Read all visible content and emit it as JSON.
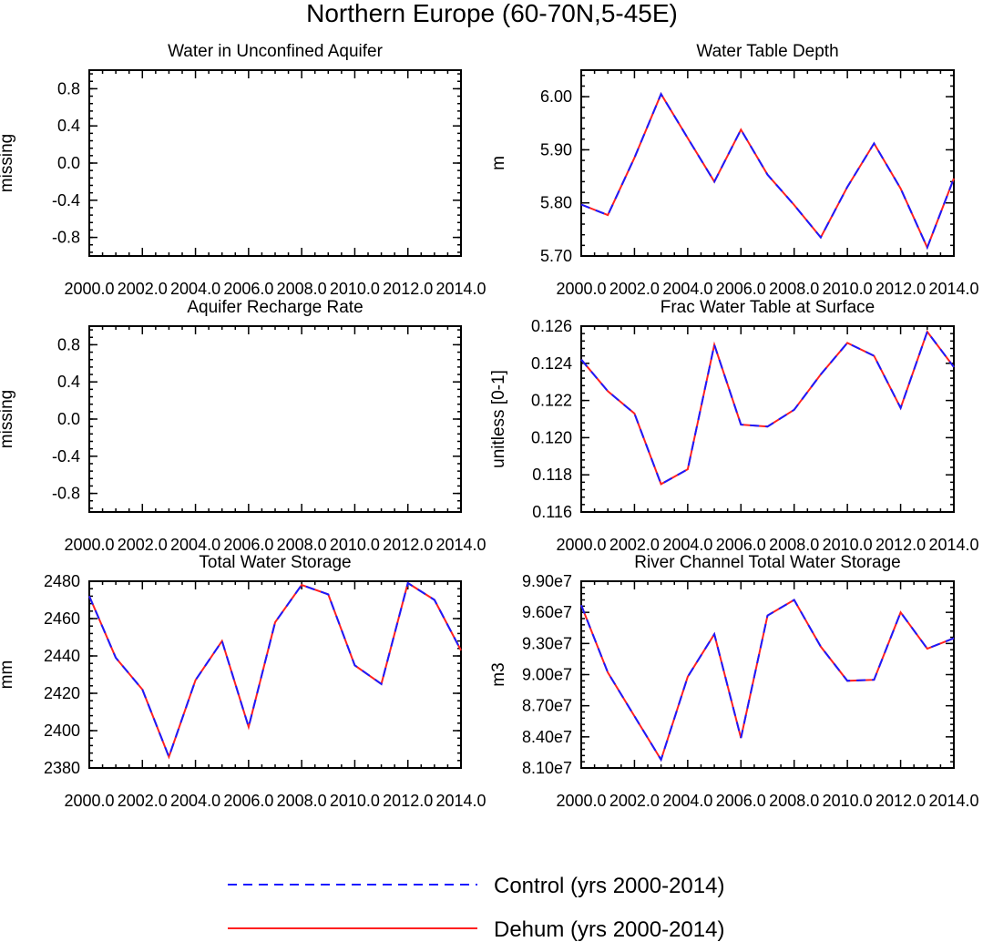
{
  "figure_title": "Northern Europe (60-70N,5-45E)",
  "legend": [
    {
      "label": "Control (yrs 2000-2014)",
      "color": "#1a1aff",
      "style": "dashed"
    },
    {
      "label": "Dehum (yrs 2000-2014)",
      "color": "#ff2020",
      "style": "solid"
    }
  ],
  "chart_data": [
    {
      "type": "line",
      "title": "Water in Unconfined Aquifer",
      "xlabel": "",
      "ylabel": "missing",
      "xlim": [
        2000,
        2014
      ],
      "ylim": [
        -1,
        1
      ],
      "xticks": [
        2000,
        2002,
        2004,
        2006,
        2008,
        2010,
        2012,
        2014
      ],
      "xticklabels": [
        "2000.0",
        "2002.0",
        "2004.0",
        "2006.0",
        "2008.0",
        "2010.0",
        "2012.0",
        "2014.0"
      ],
      "yticks": [
        0.8,
        0.4,
        0.0,
        -0.4,
        -0.8
      ],
      "yticklabels": [
        "0.8",
        "0.4",
        "0.0",
        "-0.4",
        "-0.8"
      ],
      "x": [],
      "series": []
    },
    {
      "type": "line",
      "title": "Water Table Depth",
      "xlabel": "",
      "ylabel": "m",
      "xlim": [
        2000,
        2014
      ],
      "ylim": [
        5.7,
        6.05
      ],
      "xticks": [
        2000,
        2002,
        2004,
        2006,
        2008,
        2010,
        2012,
        2014
      ],
      "xticklabels": [
        "2000.0",
        "2002.0",
        "2004.0",
        "2006.0",
        "2008.0",
        "2010.0",
        "2012.0",
        "2014.0"
      ],
      "yticks": [
        6.0,
        5.9,
        5.8,
        5.7
      ],
      "yticklabels": [
        "6.00",
        "5.90",
        "5.80",
        "5.70"
      ],
      "x": [
        2000,
        2001,
        2002,
        2003,
        2004,
        2005,
        2006,
        2007,
        2008,
        2009,
        2010,
        2011,
        2012,
        2013,
        2014
      ],
      "series": [
        {
          "name": "Control (yrs 2000-2014)",
          "values": [
            5.797,
            5.777,
            5.885,
            6.005,
            5.922,
            5.84,
            5.938,
            5.853,
            5.796,
            5.735,
            5.83,
            5.912,
            5.827,
            5.716,
            5.846
          ]
        },
        {
          "name": "Dehum (yrs 2000-2014)",
          "values": [
            5.797,
            5.777,
            5.885,
            6.005,
            5.922,
            5.84,
            5.938,
            5.853,
            5.796,
            5.735,
            5.83,
            5.912,
            5.827,
            5.716,
            5.846
          ]
        }
      ]
    },
    {
      "type": "line",
      "title": "Aquifer Recharge Rate",
      "xlabel": "",
      "ylabel": "missing",
      "xlim": [
        2000,
        2014
      ],
      "ylim": [
        -1,
        1
      ],
      "xticks": [
        2000,
        2002,
        2004,
        2006,
        2008,
        2010,
        2012,
        2014
      ],
      "xticklabels": [
        "2000.0",
        "2002.0",
        "2004.0",
        "2006.0",
        "2008.0",
        "2010.0",
        "2012.0",
        "2014.0"
      ],
      "yticks": [
        0.8,
        0.4,
        0.0,
        -0.4,
        -0.8
      ],
      "yticklabels": [
        "0.8",
        "0.4",
        "0.0",
        "-0.4",
        "-0.8"
      ],
      "x": [],
      "series": []
    },
    {
      "type": "line",
      "title": "Frac Water Table at Surface",
      "xlabel": "",
      "ylabel": "unitless [0-1]",
      "xlim": [
        2000,
        2014
      ],
      "ylim": [
        0.116,
        0.126
      ],
      "xticks": [
        2000,
        2002,
        2004,
        2006,
        2008,
        2010,
        2012,
        2014
      ],
      "xticklabels": [
        "2000.0",
        "2002.0",
        "2004.0",
        "2006.0",
        "2008.0",
        "2010.0",
        "2012.0",
        "2014.0"
      ],
      "yticks": [
        0.126,
        0.124,
        0.122,
        0.12,
        0.118,
        0.116
      ],
      "yticklabels": [
        "0.126",
        "0.124",
        "0.122",
        "0.120",
        "0.118",
        "0.116"
      ],
      "x": [
        2000,
        2001,
        2002,
        2003,
        2004,
        2005,
        2006,
        2007,
        2008,
        2009,
        2010,
        2011,
        2012,
        2013,
        2014
      ],
      "series": [
        {
          "name": "Control (yrs 2000-2014)",
          "values": [
            0.1242,
            0.1225,
            0.1213,
            0.1175,
            0.1183,
            0.125,
            0.1207,
            0.1206,
            0.1215,
            0.1234,
            0.1251,
            0.1244,
            0.1216,
            0.1257,
            0.1238
          ]
        },
        {
          "name": "Dehum (yrs 2000-2014)",
          "values": [
            0.1242,
            0.1225,
            0.1213,
            0.1175,
            0.1183,
            0.125,
            0.1207,
            0.1206,
            0.1215,
            0.1234,
            0.1251,
            0.1244,
            0.1216,
            0.1257,
            0.1238
          ]
        }
      ]
    },
    {
      "type": "line",
      "title": "Total Water Storage",
      "xlabel": "",
      "ylabel": "mm",
      "xlim": [
        2000,
        2014
      ],
      "ylim": [
        2380,
        2480
      ],
      "xticks": [
        2000,
        2002,
        2004,
        2006,
        2008,
        2010,
        2012,
        2014
      ],
      "xticklabels": [
        "2000.0",
        "2002.0",
        "2004.0",
        "2006.0",
        "2008.0",
        "2010.0",
        "2012.0",
        "2014.0"
      ],
      "yticks": [
        2480,
        2460,
        2440,
        2420,
        2400,
        2380
      ],
      "yticklabels": [
        "2480",
        "2460",
        "2440",
        "2420",
        "2400",
        "2380"
      ],
      "x": [
        2000,
        2001,
        2002,
        2003,
        2004,
        2005,
        2006,
        2007,
        2008,
        2009,
        2010,
        2011,
        2012,
        2013,
        2014
      ],
      "series": [
        {
          "name": "Control (yrs 2000-2014)",
          "values": [
            2472,
            2439,
            2422,
            2386,
            2427,
            2448,
            2402,
            2458,
            2478,
            2473,
            2435,
            2425,
            2479,
            2470,
            2443
          ]
        },
        {
          "name": "Dehum (yrs 2000-2014)",
          "values": [
            2472,
            2439,
            2422,
            2386,
            2427,
            2448,
            2402,
            2458,
            2478,
            2473,
            2435,
            2425,
            2479,
            2470,
            2443
          ]
        }
      ]
    },
    {
      "type": "line",
      "title": "River Channel Total Water Storage",
      "xlabel": "",
      "ylabel": "m3",
      "xlim": [
        2000,
        2014
      ],
      "ylim": [
        81000000,
        99000000
      ],
      "xticks": [
        2000,
        2002,
        2004,
        2006,
        2008,
        2010,
        2012,
        2014
      ],
      "xticklabels": [
        "2000.0",
        "2002.0",
        "2004.0",
        "2006.0",
        "2008.0",
        "2010.0",
        "2012.0",
        "2014.0"
      ],
      "yticks": [
        99000000,
        96000000,
        93000000,
        90000000,
        87000000,
        84000000,
        81000000
      ],
      "yticklabels": [
        "9.90e7",
        "9.60e7",
        "9.30e7",
        "9.00e7",
        "8.70e7",
        "8.40e7",
        "8.10e7"
      ],
      "x": [
        2000,
        2001,
        2002,
        2003,
        2004,
        2005,
        2006,
        2007,
        2008,
        2009,
        2010,
        2011,
        2012,
        2013,
        2014
      ],
      "series": [
        {
          "name": "Control (yrs 2000-2014)",
          "values": [
            96700000,
            90200000,
            86000000,
            81800000,
            89800000,
            93900000,
            83900000,
            95700000,
            97200000,
            92700000,
            89400000,
            89500000,
            96000000,
            92500000,
            93500000
          ]
        },
        {
          "name": "Dehum (yrs 2000-2014)",
          "values": [
            96700000,
            90200000,
            86000000,
            81800000,
            89800000,
            93900000,
            83900000,
            95700000,
            97200000,
            92700000,
            89400000,
            89500000,
            96000000,
            92500000,
            93500000
          ]
        }
      ]
    }
  ]
}
